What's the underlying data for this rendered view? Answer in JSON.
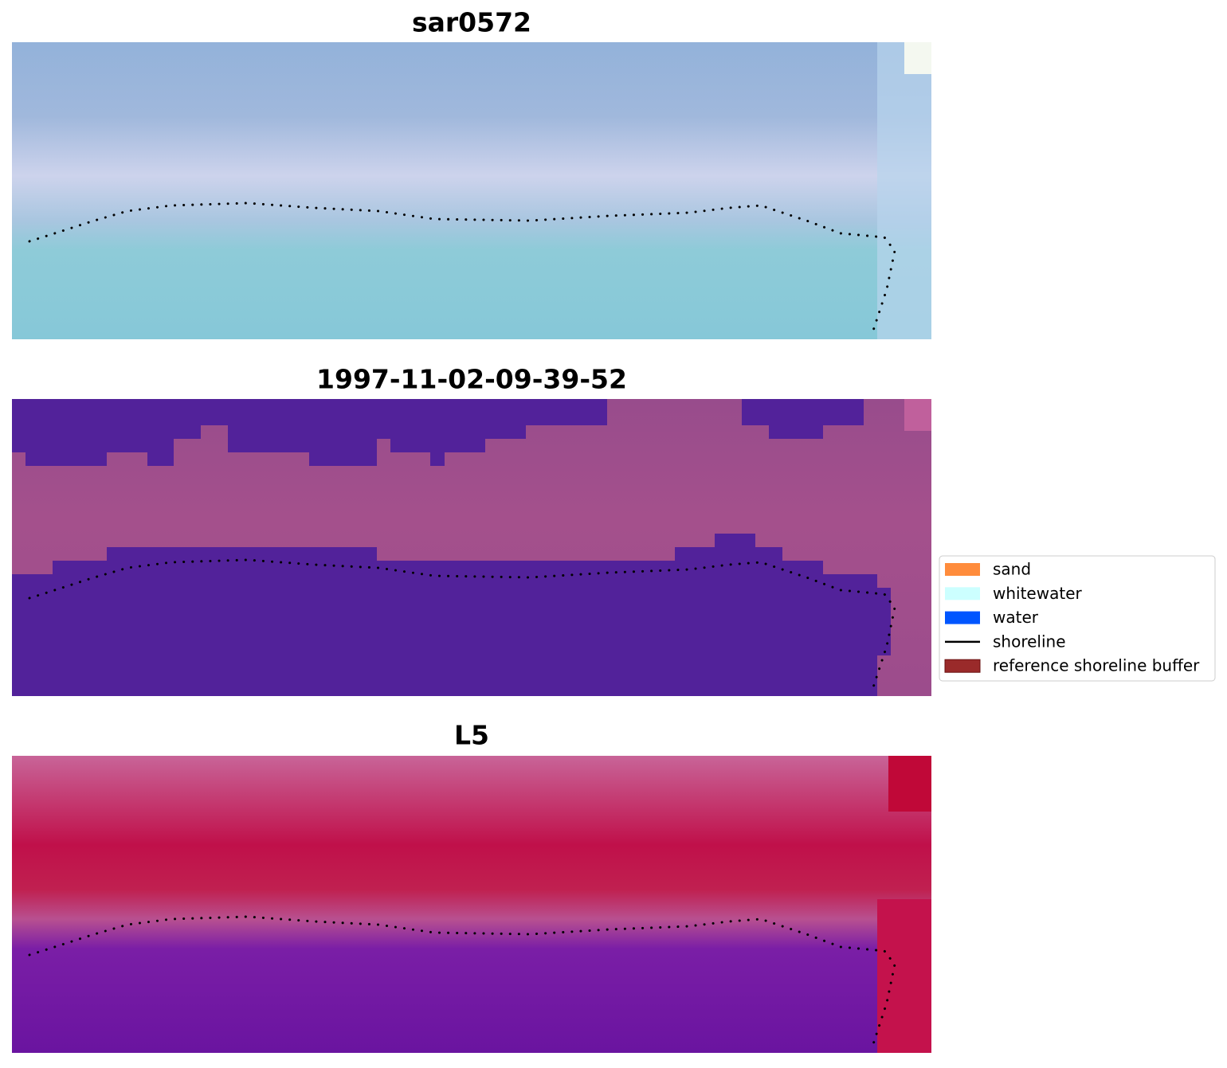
{
  "panels": [
    {
      "title": "sar0572"
    },
    {
      "title": "1997-11-02-09-39-52"
    },
    {
      "title": "L5"
    }
  ],
  "legend": {
    "items": [
      {
        "label": "sand",
        "color": "#ff8c3c",
        "kind": "patch"
      },
      {
        "label": "whitewater",
        "color": "#ccffff",
        "kind": "patch"
      },
      {
        "label": "water",
        "color": "#0055ff",
        "kind": "patch"
      },
      {
        "label": "shoreline",
        "color": "#000000",
        "kind": "line"
      },
      {
        "label": "reference shoreline buffer",
        "color": "#9a2a2a",
        "kind": "patch"
      }
    ]
  }
}
